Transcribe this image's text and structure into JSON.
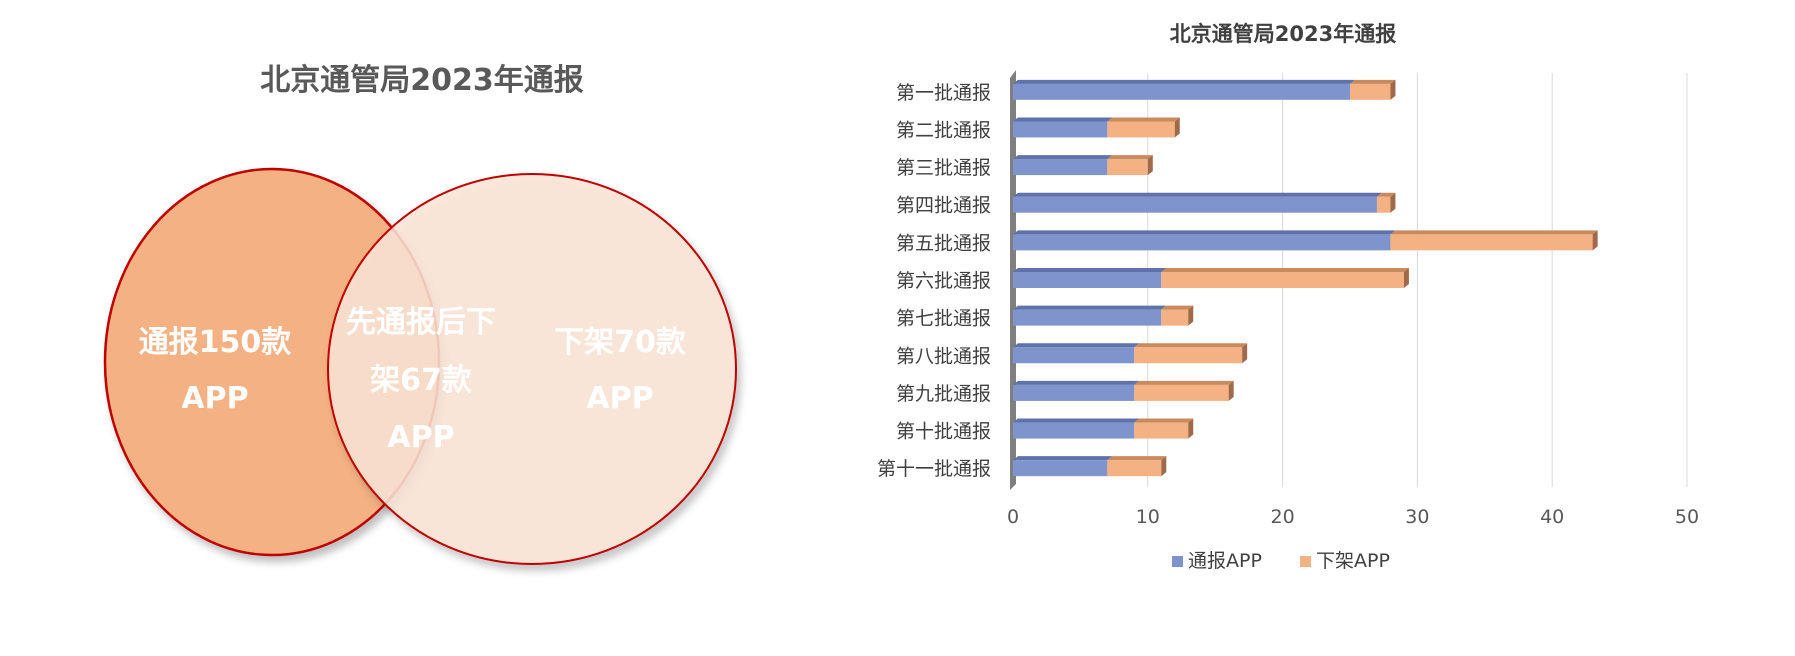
{
  "venn": {
    "title": "北京通管局2023年通报",
    "left_lines": [
      "通报150款",
      "APP"
    ],
    "overlap_lines": [
      "先通报后下",
      "架67款",
      "APP"
    ],
    "right_lines": [
      "下架70款",
      "APP"
    ]
  },
  "chart_data": {
    "type": "bar",
    "orientation": "horizontal",
    "stacked": true,
    "title": "北京通管局2023年通报",
    "categories": [
      "第一批通报",
      "第二批通报",
      "第三批通报",
      "第四批通报",
      "第五批通报",
      "第六批通报",
      "第七批通报",
      "第八批通报",
      "第九批通报",
      "第十批通报",
      "第十一批通报"
    ],
    "series": [
      {
        "name": "通报APP",
        "color": "#7f93cc",
        "values": [
          25,
          7,
          7,
          27,
          28,
          11,
          11,
          9,
          9,
          9,
          7
        ]
      },
      {
        "name": "下架APP",
        "color": "#f4b183",
        "values": [
          3,
          5,
          3,
          1,
          15,
          18,
          2,
          8,
          7,
          4,
          4
        ]
      }
    ],
    "xlim": [
      0,
      50
    ],
    "xticks": [
      "0",
      "10",
      "20",
      "30",
      "40",
      "50"
    ],
    "grid": true,
    "legend_position": "bottom"
  },
  "colors": {
    "venn_left": "#f4b183",
    "venn_right": "#fbe5d6",
    "venn_stroke": "#c00000"
  }
}
